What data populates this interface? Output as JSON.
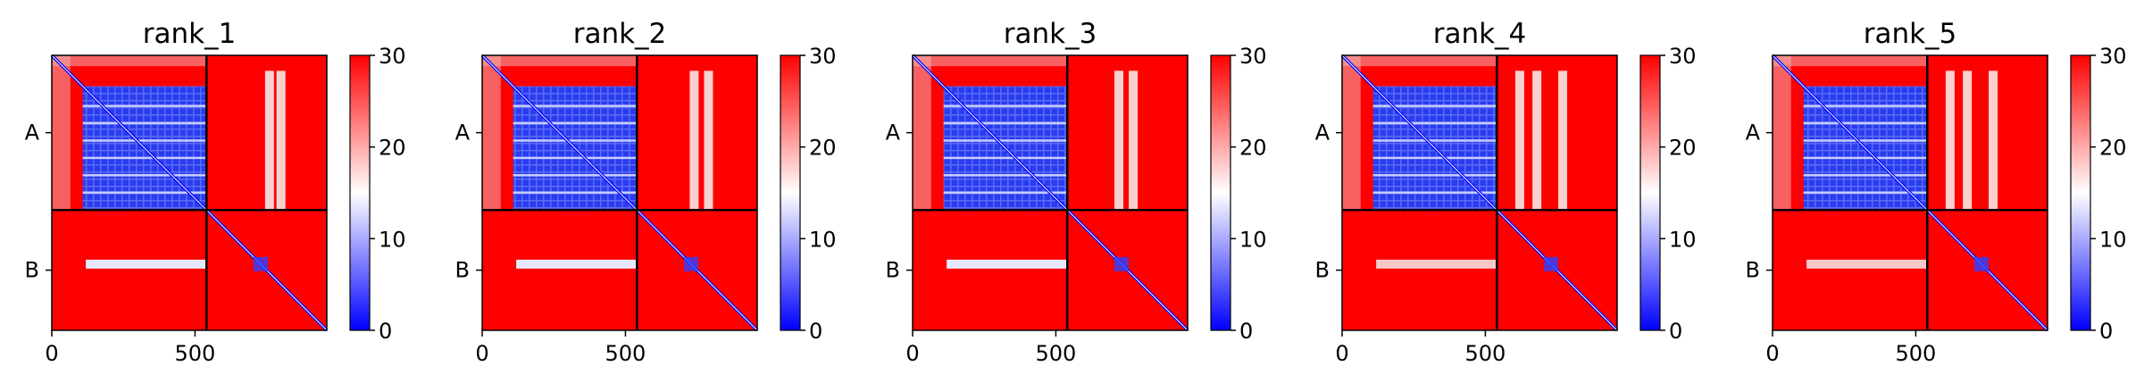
{
  "chart_data": [
    {
      "type": "heatmap",
      "title": "rank_1",
      "x_ticks": [
        {
          "value": 0,
          "label": "0"
        },
        {
          "value": 500,
          "label": "500"
        }
      ],
      "y_ticks": [
        {
          "label": "A"
        },
        {
          "label": "B"
        }
      ],
      "x_range": [
        0,
        960
      ],
      "chain_boundary": 540,
      "colorbar": {
        "min": 0,
        "max": 30,
        "ticks": [
          0,
          10,
          20,
          30
        ],
        "colors": [
          "#0000ff",
          "#ffffff",
          "#ff0000"
        ]
      },
      "vertical_stripes_x": [
        760,
        800
      ]
    },
    {
      "type": "heatmap",
      "title": "rank_2",
      "x_ticks": [
        {
          "value": 0,
          "label": "0"
        },
        {
          "value": 500,
          "label": "500"
        }
      ],
      "y_ticks": [
        {
          "label": "A"
        },
        {
          "label": "B"
        }
      ],
      "x_range": [
        0,
        960
      ],
      "chain_boundary": 540,
      "colorbar": {
        "min": 0,
        "max": 30,
        "ticks": [
          0,
          10,
          20,
          30
        ],
        "colors": [
          "#0000ff",
          "#ffffff",
          "#ff0000"
        ]
      },
      "vertical_stripes_x": [
        740,
        790
      ]
    },
    {
      "type": "heatmap",
      "title": "rank_3",
      "x_ticks": [
        {
          "value": 0,
          "label": "0"
        },
        {
          "value": 500,
          "label": "500"
        }
      ],
      "y_ticks": [
        {
          "label": "A"
        },
        {
          "label": "B"
        }
      ],
      "x_range": [
        0,
        960
      ],
      "chain_boundary": 540,
      "colorbar": {
        "min": 0,
        "max": 30,
        "ticks": [
          0,
          10,
          20,
          30
        ],
        "colors": [
          "#0000ff",
          "#ffffff",
          "#ff0000"
        ]
      },
      "vertical_stripes_x": [
        720,
        770
      ]
    },
    {
      "type": "heatmap",
      "title": "rank_4",
      "x_ticks": [
        {
          "value": 0,
          "label": "0"
        },
        {
          "value": 500,
          "label": "500"
        }
      ],
      "y_ticks": [
        {
          "label": "A"
        },
        {
          "label": "B"
        }
      ],
      "x_range": [
        0,
        960
      ],
      "chain_boundary": 540,
      "colorbar": {
        "min": 0,
        "max": 30,
        "ticks": [
          0,
          10,
          20,
          30
        ],
        "colors": [
          "#0000ff",
          "#ffffff",
          "#ff0000"
        ]
      },
      "vertical_stripes_x": [
        620,
        680,
        770
      ]
    },
    {
      "type": "heatmap",
      "title": "rank_5",
      "x_ticks": [
        {
          "value": 0,
          "label": "0"
        },
        {
          "value": 500,
          "label": "500"
        }
      ],
      "y_ticks": [
        {
          "label": "A"
        },
        {
          "label": "B"
        }
      ],
      "x_range": [
        0,
        960
      ],
      "chain_boundary": 540,
      "colorbar": {
        "min": 0,
        "max": 30,
        "ticks": [
          0,
          10,
          20,
          30
        ],
        "colors": [
          "#0000ff",
          "#ffffff",
          "#ff0000"
        ]
      },
      "vertical_stripes_x": [
        620,
        680,
        770
      ]
    }
  ]
}
